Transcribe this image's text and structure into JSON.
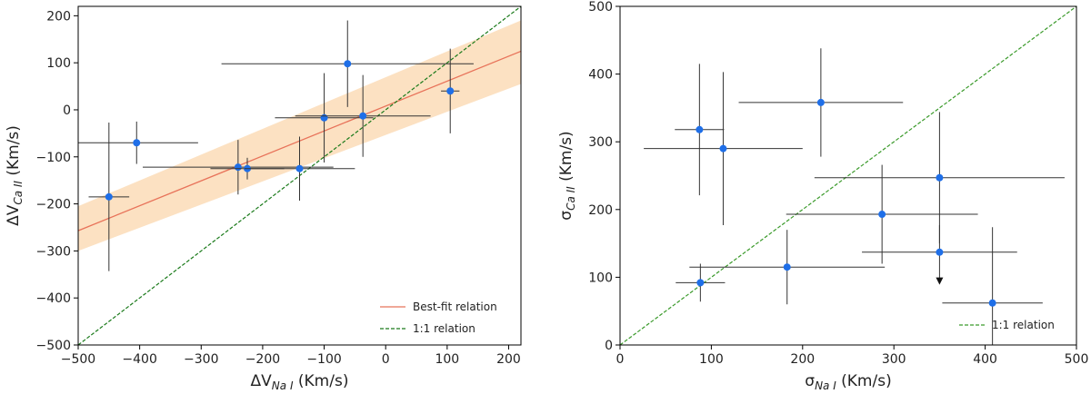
{
  "chart_data": [
    {
      "type": "scatter",
      "title": "",
      "xlabel": "ΔV",
      "xlabel_sub": "Na I",
      "xlabel_unit": " (Km/s)",
      "ylabel": "ΔV",
      "ylabel_sub": "Ca II",
      "ylabel_unit": " (Km/s)",
      "xlim": [
        -500,
        220
      ],
      "ylim": [
        -500,
        220
      ],
      "xticks": [
        -500,
        -400,
        -300,
        -200,
        -100,
        0,
        100,
        200
      ],
      "yticks": [
        -500,
        -400,
        -300,
        -200,
        -100,
        0,
        100,
        200
      ],
      "grid": false,
      "legend_position": "bottom-right",
      "colors": {
        "point": "#1f6fe8",
        "errorbar": "#333333",
        "fit": "#e8735a",
        "band": "#f9c890",
        "one_to_one": "#1a7a1a"
      },
      "series": [
        {
          "name": "",
          "points": [
            {
              "x": -450,
              "y": -185,
              "xerr": 33,
              "yerr": 158
            },
            {
              "x": -405,
              "y": -70,
              "xerr": 100,
              "yerr": 45
            },
            {
              "x": -240,
              "y": -122,
              "xerr": 155,
              "yerr": 58
            },
            {
              "x": -225,
              "y": -125,
              "xerr": 60,
              "yerr": 23
            },
            {
              "x": -140,
              "y": -125,
              "xerr": 90,
              "yerr": 68
            },
            {
              "x": -100,
              "y": -17,
              "xerr": 80,
              "yerr": 95
            },
            {
              "x": -62,
              "y": 98,
              "xerr": 205,
              "yerr": 92
            },
            {
              "x": -37,
              "y": -13,
              "xerr": 110,
              "yerr": 87
            },
            {
              "x": 105,
              "y": 40,
              "xerr": 15,
              "yerr": 90
            }
          ]
        }
      ],
      "fit": {
        "name": "Best-fit relation",
        "intercept": 8,
        "slope": 0.53,
        "band_low": [
          -300,
          55
        ],
        "band_high": [
          -205,
          190
        ]
      },
      "one_to_one": {
        "name": "1:1 relation"
      }
    },
    {
      "type": "scatter",
      "title": "",
      "xlabel": "σ",
      "xlabel_sub": "Na I",
      "xlabel_unit": " (Km/s)",
      "ylabel": "σ",
      "ylabel_sub": "Ca II",
      "ylabel_unit": " (Km/s)",
      "xlim": [
        0,
        500
      ],
      "ylim": [
        0,
        500
      ],
      "xticks": [
        0,
        100,
        200,
        300,
        400,
        500
      ],
      "yticks": [
        0,
        100,
        200,
        300,
        400,
        500
      ],
      "grid": false,
      "legend_position": "bottom-right",
      "colors": {
        "point": "#1f6fe8",
        "errorbar": "#333333",
        "one_to_one": "#3a9a2a"
      },
      "series": [
        {
          "name": "",
          "points": [
            {
              "x": 87,
              "y": 318,
              "xerr": 27,
              "yerr": 97
            },
            {
              "x": 113,
              "y": 290,
              "xerr": 87,
              "yerr": 113
            },
            {
              "x": 220,
              "y": 358,
              "xerr": 90,
              "yerr": 80
            },
            {
              "x": 350,
              "y": 247,
              "xerr": 137,
              "yerr": 97
            },
            {
              "x": 287,
              "y": 193,
              "xerr": 105,
              "yerr": 73
            },
            {
              "x": 350,
              "y": 137,
              "xerr": 85,
              "yerr": 40,
              "upper_limit": true
            },
            {
              "x": 183,
              "y": 115,
              "xerr": 107,
              "yerr": 55
            },
            {
              "x": 88,
              "y": 92,
              "xerr": 27,
              "yerr": 28
            },
            {
              "x": 408,
              "y": 62,
              "xerr": 55,
              "yerr": 112
            }
          ]
        }
      ],
      "one_to_one": {
        "name": "1:1 relation"
      }
    }
  ]
}
